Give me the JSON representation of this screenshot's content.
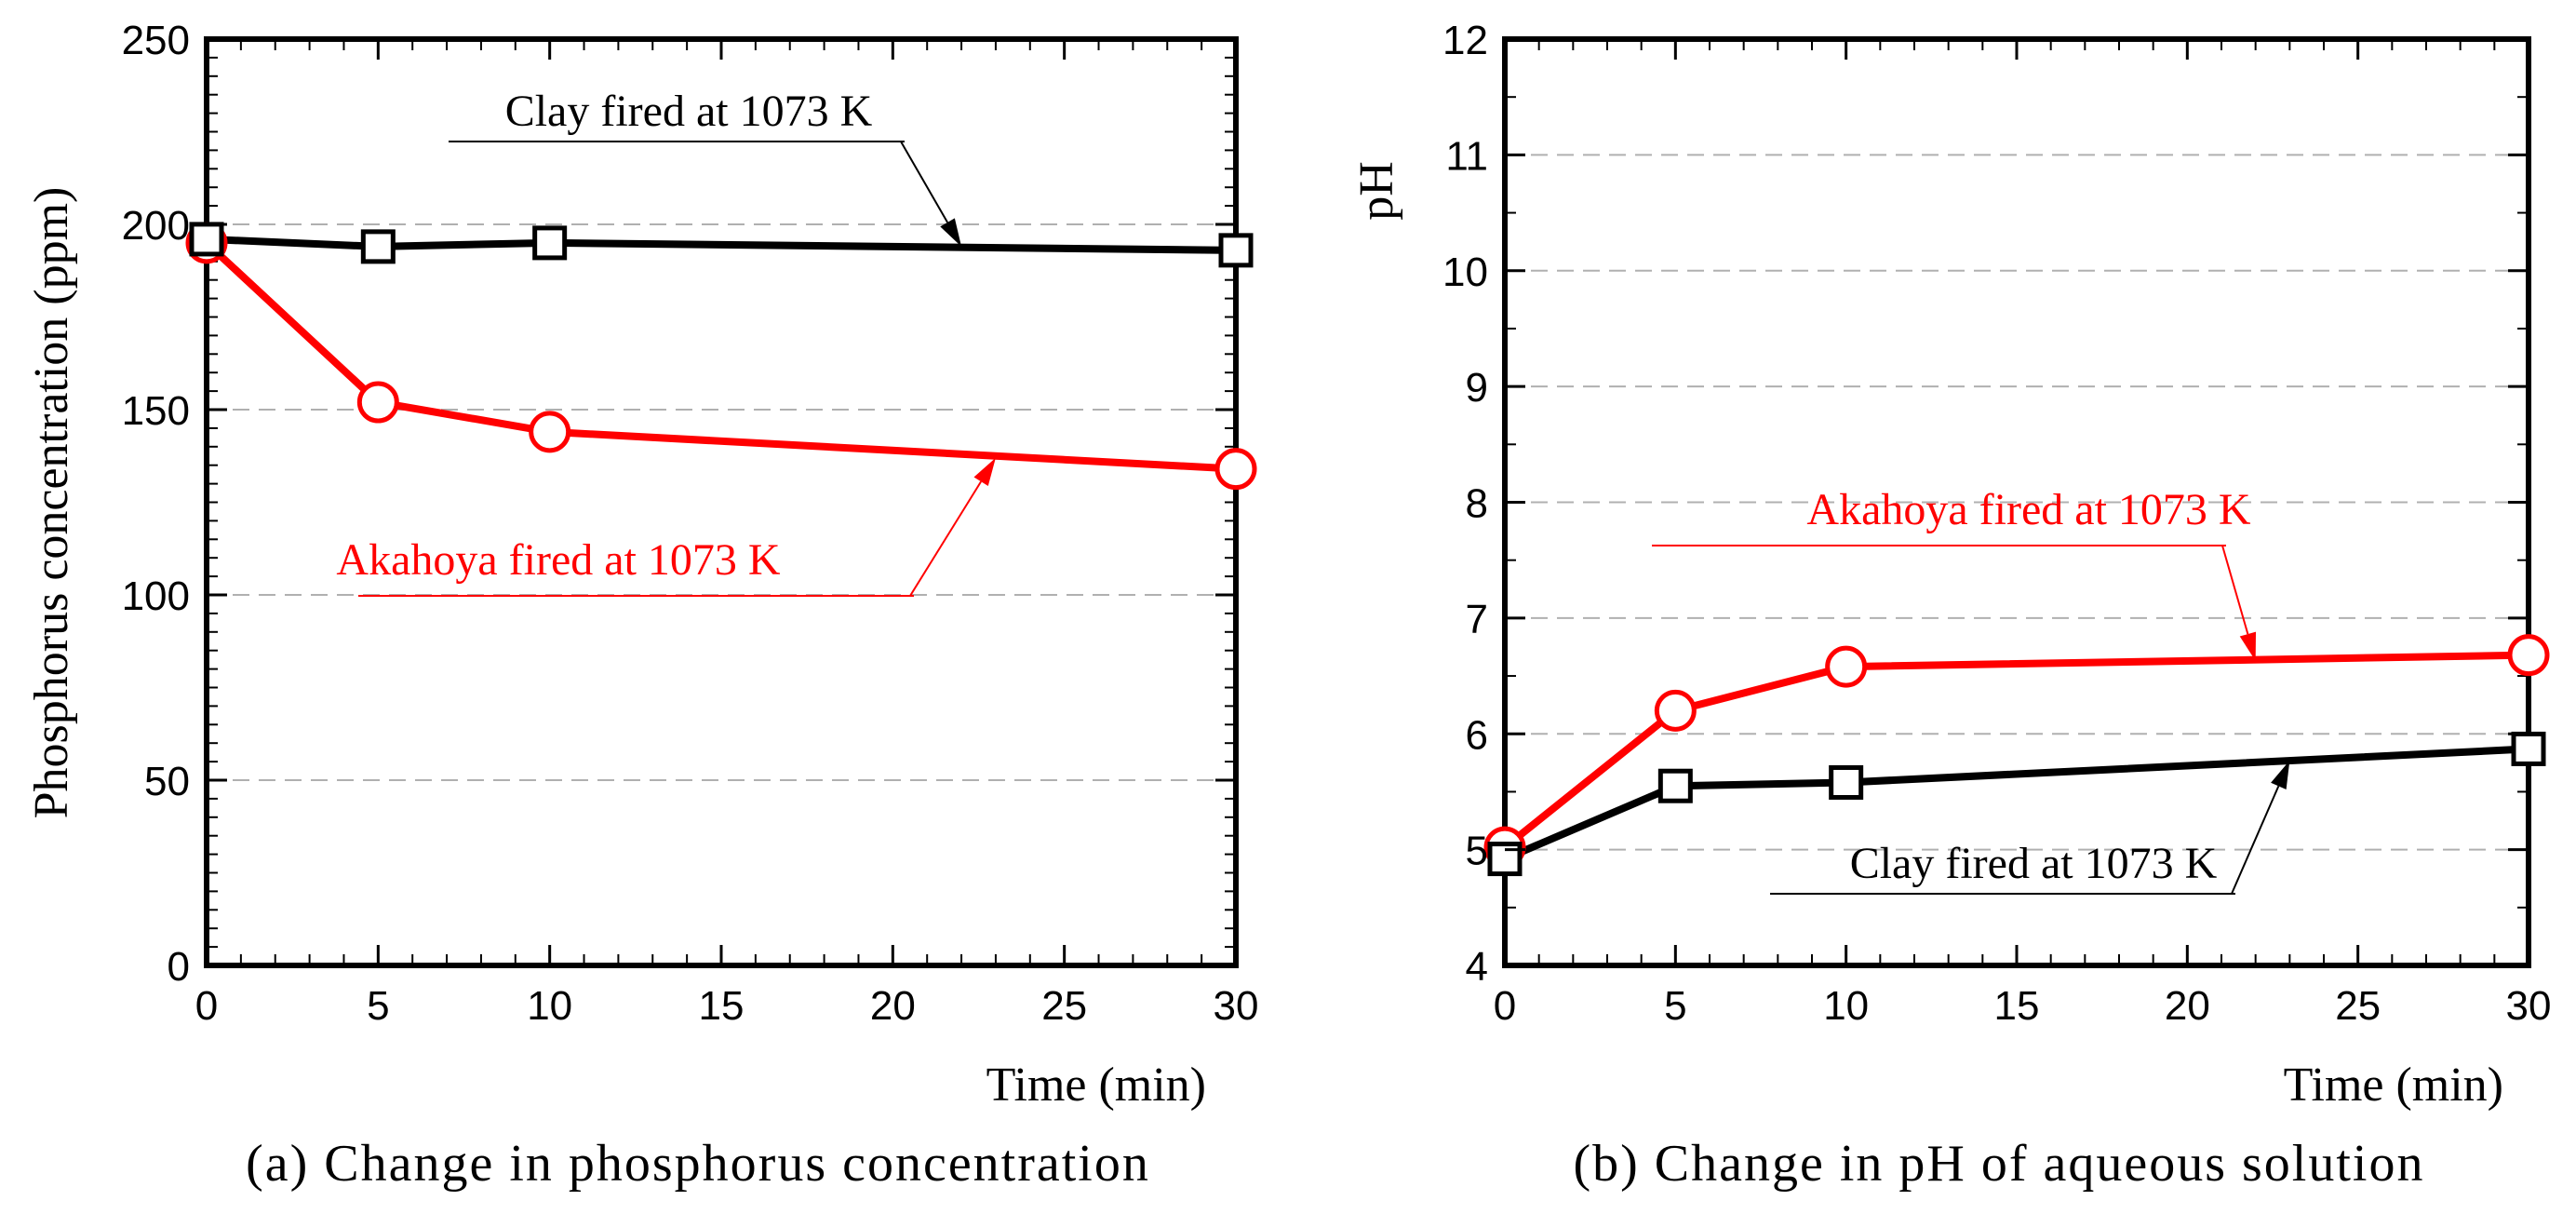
{
  "colors": {
    "clay": "#000000",
    "akahoya": "#ff0000",
    "grid": "#b0b0b0"
  },
  "chart_data": [
    {
      "type": "line",
      "caption": "(a) Change in phosphorus concentration",
      "xlabel": "Time (min)",
      "ylabel": "Phosphorus concentration (ppm)",
      "xlim": [
        0,
        30
      ],
      "ylim": [
        0,
        250
      ],
      "xticks": [
        "0",
        "5",
        "10",
        "15",
        "20",
        "25",
        "30"
      ],
      "yticks": [
        "0",
        "50",
        "100",
        "150",
        "200",
        "250"
      ],
      "series": [
        {
          "name": "Clay fired at 1073 K",
          "color": "#000000",
          "marker": "square",
          "x": [
            0,
            5,
            10,
            30
          ],
          "y": [
            196,
            194,
            195,
            193
          ]
        },
        {
          "name": "Akahoya fired at 1073 K",
          "color": "#ff0000",
          "marker": "circle",
          "x": [
            0,
            5,
            10,
            30
          ],
          "y": [
            195,
            152,
            144,
            134
          ]
        }
      ],
      "annotations": [
        {
          "text": "Clay fired at 1073 K",
          "color": "#000000",
          "series": 0,
          "target": [
            22,
            194
          ]
        },
        {
          "text": "Akahoya fired at 1073 K",
          "color": "#ff0000",
          "series": 1,
          "target": [
            23,
            137
          ]
        }
      ]
    },
    {
      "type": "line",
      "caption": "(b) Change in pH of aqueous solution",
      "xlabel": "Time (min)",
      "ylabel": "pH",
      "xlim": [
        0,
        30
      ],
      "ylim": [
        4,
        12
      ],
      "xticks": [
        "0",
        "5",
        "10",
        "15",
        "20",
        "25",
        "30"
      ],
      "yticks": [
        "4",
        "5",
        "6",
        "7",
        "8",
        "9",
        "10",
        "11",
        "12"
      ],
      "series": [
        {
          "name": "Clay fired at 1073 K",
          "color": "#000000",
          "marker": "square",
          "x": [
            0,
            5,
            10,
            30
          ],
          "y": [
            4.92,
            5.55,
            5.58,
            5.87
          ]
        },
        {
          "name": "Akahoya fired at 1073 K",
          "color": "#ff0000",
          "marker": "circle",
          "x": [
            0,
            5,
            10,
            30
          ],
          "y": [
            5.02,
            6.2,
            6.58,
            6.68
          ]
        }
      ],
      "annotations": [
        {
          "text": "Clay fired at 1073 K",
          "color": "#000000",
          "series": 0,
          "target": [
            23,
            5.77
          ]
        },
        {
          "text": "Akahoya fired at 1073 K",
          "color": "#ff0000",
          "series": 1,
          "target": [
            22,
            6.63
          ]
        }
      ]
    }
  ]
}
